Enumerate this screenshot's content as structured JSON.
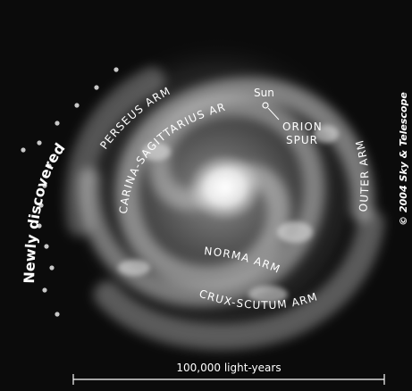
{
  "labels": {
    "newly_discovered_arm": "Newly discovered arm",
    "perseus_arm": "PERSEUS ARM",
    "carina_sagittarius_arm": "CARINA-SAGITTARIUS ARM",
    "sun": "Sun",
    "orion": "ORION",
    "spur": "SPUR",
    "outer_arm": "OUTER ARM",
    "norma_arm": "NORMA ARM",
    "crux_scutum_arm": "CRUX-SCUTUM ARM",
    "copyright": "© 2004 Sky & Telescope"
  },
  "scale_bar": {
    "label": "100,000 light-years"
  },
  "colors": {
    "background": "#0b0b0b",
    "galaxy_glow": "#d9d9d9",
    "text": "#ffffff",
    "dots": "#c8c8c8"
  }
}
